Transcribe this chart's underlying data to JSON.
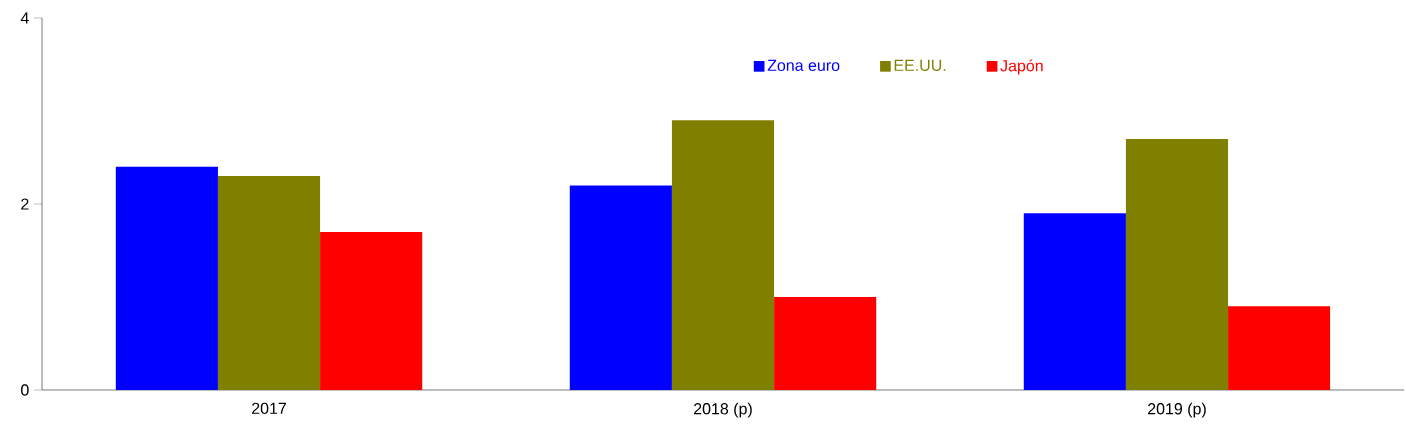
{
  "chart_data": {
    "type": "bar",
    "categories": [
      "2017",
      "2018 (p)",
      "2019 (p)"
    ],
    "series": [
      {
        "name": "Zona euro",
        "color": "#0000ff",
        "values": [
          2.4,
          2.2,
          1.9
        ]
      },
      {
        "name": "EE.UU.",
        "color": "#808000",
        "values": [
          2.3,
          2.9,
          2.7
        ]
      },
      {
        "name": "Japón",
        "color": "#ff0000",
        "values": [
          1.7,
          1.0,
          0.9
        ]
      }
    ],
    "ylim": [
      0,
      4
    ],
    "yticks": [
      0,
      2,
      4
    ],
    "legend": "top",
    "grid": false
  }
}
